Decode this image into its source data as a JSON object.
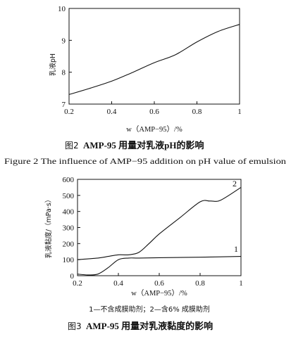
{
  "chart_data": [
    {
      "type": "line",
      "ylabel": "乳液pH",
      "xlabel": "w（AMP−95）/%",
      "xlim": [
        0.2,
        1.0
      ],
      "ylim": [
        7,
        10
      ],
      "xticks": [
        "0.2",
        "0.4",
        "0.6",
        "0.8",
        "1"
      ],
      "yticks": [
        "7",
        "8",
        "9",
        "10"
      ],
      "series": [
        {
          "x": [
            0.2,
            0.3,
            0.4,
            0.5,
            0.6,
            0.7,
            0.8,
            0.9,
            1.0
          ],
          "y": [
            7.3,
            7.5,
            7.72,
            8.0,
            8.3,
            8.55,
            8.95,
            9.28,
            9.5
          ]
        }
      ],
      "caption_num": "图2",
      "caption_cn": "AMP-95 用量对乳液pH的影响",
      "caption_en": "Figure 2   The influence of AMP−95 addition on pH value of emulsion"
    },
    {
      "type": "line",
      "ylabel": "乳液黏度/（mPa·s）",
      "xlabel": "w（AMP−95）/%",
      "xlim": [
        0.2,
        1.0
      ],
      "ylim": [
        0,
        600
      ],
      "xticks": [
        "0.2",
        "0.4",
        "0.6",
        "0.8",
        "1"
      ],
      "yticks": [
        "0",
        "100",
        "200",
        "300",
        "400",
        "500",
        "600"
      ],
      "series": [
        {
          "name": "1",
          "x": [
            0.2,
            0.25,
            0.3,
            0.35,
            0.4,
            0.45,
            0.5,
            0.6,
            0.8,
            1.0
          ],
          "y": [
            10,
            5,
            10,
            50,
            100,
            110,
            110,
            112,
            115,
            120
          ]
        },
        {
          "name": "2",
          "x": [
            0.2,
            0.3,
            0.35,
            0.4,
            0.45,
            0.5,
            0.55,
            0.6,
            0.7,
            0.8,
            0.85,
            0.9,
            1.0
          ],
          "y": [
            100,
            110,
            120,
            130,
            130,
            145,
            200,
            260,
            360,
            460,
            465,
            470,
            550
          ]
        }
      ],
      "legend_text": "1—不含成膜助剂；2—含6% 成膜助剂",
      "caption_num": "图3",
      "caption_cn": "AMP-95 用量对乳液黏度的影响"
    }
  ]
}
